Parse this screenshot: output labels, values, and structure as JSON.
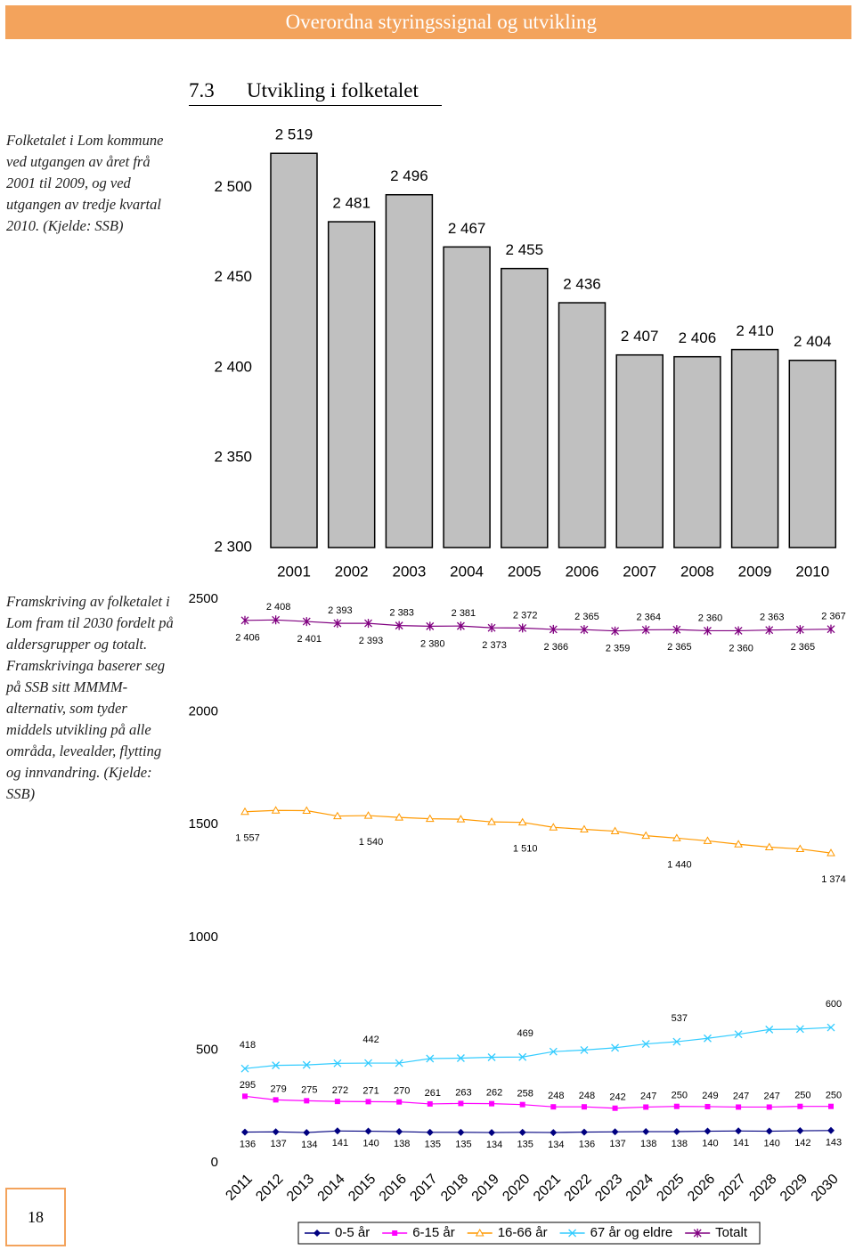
{
  "header": {
    "title": "Overordna styringssignal og utvikling"
  },
  "section": {
    "number": "7.3",
    "title": "Utvikling i folketalet"
  },
  "captions": [
    "Folketalet i Lom kommune ved utgangen av året frå 2001 til 2009, og ved utgangen av tredje kvartal 2010. (Kjelde: SSB)",
    "Framskriving av folketalet i Lom fram til 2030 fordelt på aldersgrupper og totalt. Framskrivinga baserer seg på SSB sitt MMMM-alternativ, som tyder middels utvikling på alle områda, levealder, flytting og innvandring. (Kjelde: SSB)"
  ],
  "page_number": "18",
  "chart_data": [
    {
      "type": "bar",
      "categories": [
        "2001",
        "2002",
        "2003",
        "2004",
        "2005",
        "2006",
        "2007",
        "2008",
        "2009",
        "2010"
      ],
      "values": [
        2519,
        2481,
        2496,
        2467,
        2455,
        2436,
        2407,
        2406,
        2410,
        2404
      ],
      "value_labels": [
        "2 519",
        "2 481",
        "2 496",
        "2 467",
        "2 455",
        "2 436",
        "2 407",
        "2 406",
        "2 410",
        "2 404"
      ],
      "color": "#c0c0c0",
      "ylim": [
        2300,
        2530
      ],
      "yticks": [
        {
          "value": 2300,
          "label": "2 300"
        },
        {
          "value": 2350,
          "label": "2 350"
        },
        {
          "value": 2400,
          "label": "2 400"
        },
        {
          "value": 2450,
          "label": "2 450"
        },
        {
          "value": 2500,
          "label": "2 500"
        }
      ],
      "grid": false
    },
    {
      "type": "line",
      "categories": [
        "2011",
        "2012",
        "2013",
        "2014",
        "2015",
        "2016",
        "2017",
        "2018",
        "2019",
        "2020",
        "2021",
        "2022",
        "2023",
        "2024",
        "2025",
        "2026",
        "2027",
        "2028",
        "2029",
        "2030"
      ],
      "ylim": [
        0,
        2500
      ],
      "yticks": [
        0,
        500,
        1000,
        1500,
        2000,
        2500
      ],
      "grid": false,
      "legend": "bottom",
      "series": [
        {
          "name": "0-5 år",
          "color": "#000080",
          "marker": "diamond",
          "values": [
            136,
            137,
            134,
            141,
            140,
            138,
            135,
            135,
            134,
            135,
            134,
            136,
            137,
            138,
            138,
            140,
            141,
            140,
            142,
            143
          ]
        },
        {
          "name": "6-15 år",
          "color": "#ff00ff",
          "marker": "square",
          "values": [
            295,
            279,
            275,
            272,
            271,
            270,
            261,
            263,
            262,
            258,
            248,
            248,
            242,
            247,
            250,
            249,
            247,
            247,
            250,
            250
          ]
        },
        {
          "name": "16-66 år",
          "color": "#ff9900",
          "marker": "triangle",
          "values": [
            1557,
            1563,
            1562,
            1538,
            1540,
            1532,
            1526,
            1524,
            1512,
            1510,
            1488,
            1479,
            1471,
            1451,
            1440,
            1428,
            1413,
            1400,
            1392,
            1374
          ],
          "value_labels": [
            "1 557",
            null,
            null,
            null,
            "1 540",
            null,
            null,
            null,
            null,
            "1 510",
            null,
            null,
            null,
            null,
            "1 440",
            null,
            null,
            null,
            null,
            "1 374"
          ]
        },
        {
          "name": "67 år og eldre",
          "color": "#33ccff",
          "marker": "x",
          "values": [
            418,
            432,
            434,
            441,
            442,
            442,
            462,
            464,
            468,
            469,
            493,
            500,
            510,
            527,
            537,
            552,
            570,
            591,
            593,
            600
          ],
          "value_labels": [
            "418",
            null,
            null,
            null,
            "442",
            null,
            null,
            null,
            null,
            "469",
            null,
            null,
            null,
            null,
            "537",
            null,
            null,
            null,
            null,
            "600"
          ]
        },
        {
          "name": "Totalt",
          "color": "#800080",
          "marker": "star",
          "values": [
            2406,
            2408,
            2401,
            2393,
            2393,
            2383,
            2380,
            2381,
            2373,
            2372,
            2366,
            2365,
            2359,
            2364,
            2365,
            2360,
            2360,
            2363,
            2365,
            2367
          ],
          "value_labels": [
            "2 406",
            "2 408",
            "2 401",
            "2 393",
            "2 393",
            "2 383",
            "2 380",
            "2 381",
            "2 373",
            "2 372",
            "2 366",
            "2 365",
            "2 359",
            "2 364",
            "2 365",
            "2 360",
            "2 360",
            "2 363",
            "2 365",
            "2 367"
          ]
        }
      ]
    }
  ]
}
